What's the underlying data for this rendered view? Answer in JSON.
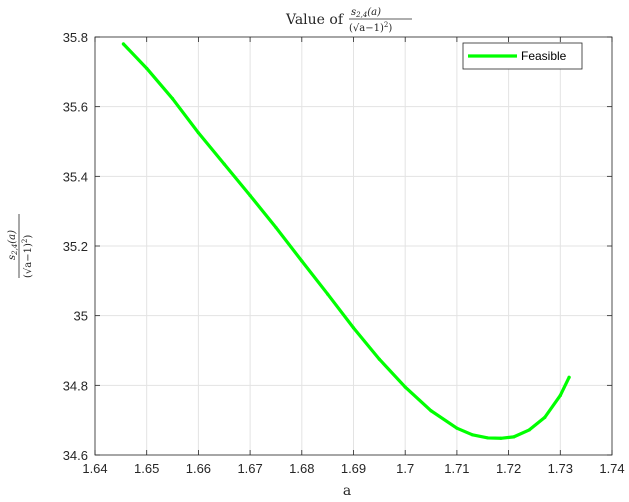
{
  "chart_data": {
    "type": "line",
    "title": {
      "prefix": "Value of",
      "numerator": "s",
      "numerator_sub": "2,4",
      "numerator_arg": "(a)",
      "denominator": "(√a−1)",
      "denominator_power": "2",
      "denominator_close": ")"
    },
    "xlabel": "a",
    "ylabel": {
      "numerator": "s",
      "numerator_sub": "2,4",
      "numerator_arg": "(a)",
      "denominator": "(√a−1)",
      "denominator_power": "2",
      "denominator_close": ")"
    },
    "xlim": [
      1.64,
      1.74
    ],
    "ylim": [
      34.6,
      35.8
    ],
    "xticks": [
      "1.64",
      "1.65",
      "1.66",
      "1.67",
      "1.68",
      "1.69",
      "1.7",
      "1.71",
      "1.72",
      "1.73",
      "1.74"
    ],
    "yticks": [
      "34.6",
      "34.8",
      "35",
      "35.2",
      "35.4",
      "35.6",
      "35.8"
    ],
    "grid": true,
    "legend_position": "top-right",
    "series": [
      {
        "name": "Feasible",
        "color": "#00ff00",
        "x": [
          1.6455,
          1.65,
          1.655,
          1.66,
          1.665,
          1.67,
          1.675,
          1.68,
          1.685,
          1.69,
          1.695,
          1.7,
          1.705,
          1.71,
          1.713,
          1.716,
          1.7185,
          1.721,
          1.724,
          1.727,
          1.73,
          1.7317
        ],
        "y": [
          35.78,
          35.71,
          35.623,
          35.525,
          35.435,
          35.345,
          35.253,
          35.157,
          35.062,
          34.965,
          34.875,
          34.795,
          34.727,
          34.677,
          34.658,
          34.649,
          34.648,
          34.652,
          34.672,
          34.708,
          34.771,
          34.823
        ]
      }
    ]
  }
}
